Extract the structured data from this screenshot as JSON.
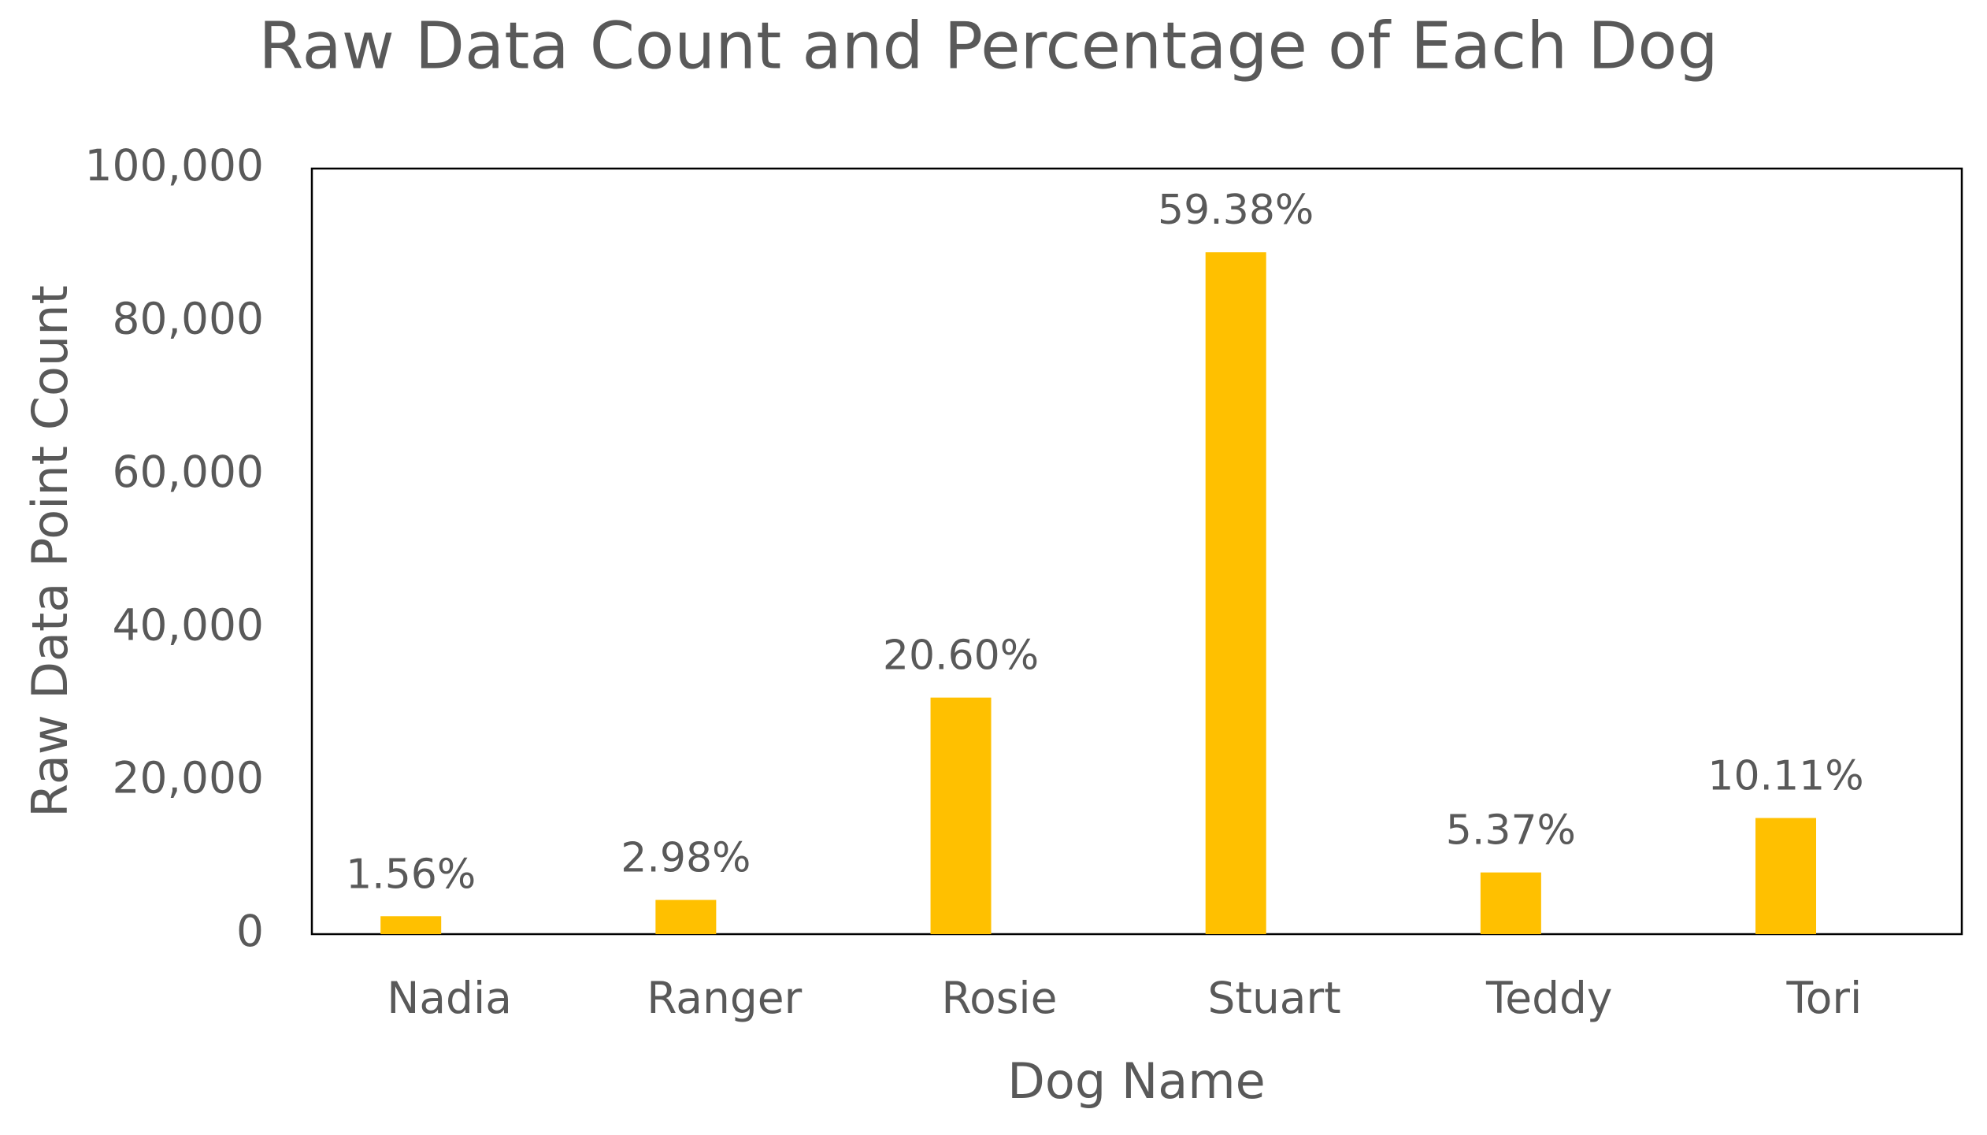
{
  "chart_data": {
    "type": "bar",
    "title": "Raw Data Count and Percentage of Each Dog",
    "x_label": "Dog Name",
    "y_label": "Raw Data Point Count",
    "categories": [
      "Nadia",
      "Ranger",
      "Rosie",
      "Stuart",
      "Teddy",
      "Tori"
    ],
    "values": [
      2340,
      4470,
      30900,
      89070,
      8060,
      15170
    ],
    "value_labels": [
      "1.56%",
      "2.98%",
      "20.60%",
      "59.38%",
      "5.37%",
      "10.11%"
    ],
    "color": "#ffc000",
    "ylim": [
      0,
      100000
    ],
    "yticks": [
      0,
      {
        "value": 20000,
        "label": "20,000"
      },
      {
        "value": 40000,
        "label": "40,000"
      },
      {
        "value": 60000,
        "label": "60,000"
      },
      {
        "value": 80000,
        "label": "80,000"
      },
      {
        "value": 100000,
        "label": "100,000"
      }
    ],
    "grid": false
  }
}
